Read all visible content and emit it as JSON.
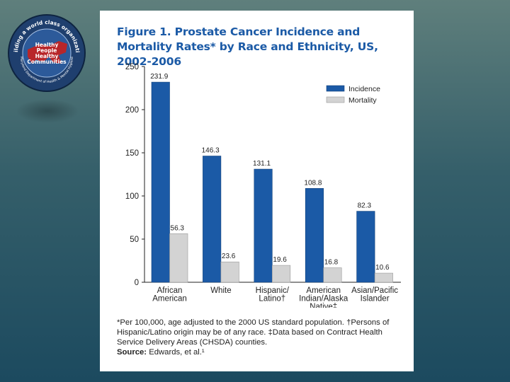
{
  "slide": {
    "logo": {
      "ring_text": "Building a world class organization",
      "center_lines": [
        "Healthy",
        "People",
        "Healthy",
        "Communities"
      ],
      "bottom_text": "Maryland Department of Health & Mental Hygiene",
      "colors": {
        "ring": "#1f3f6e",
        "inner": "#2c5a9a",
        "map": "#c8201e",
        "text": "#ffffff"
      }
    },
    "source_label": "Source:",
    "source_text": " Edwards, et al.¹",
    "footnote": "*Per 100,000, age adjusted to the 2000 US standard population. †Persons of Hispanic/Latino origin may be of any race. ‡Data based on Contract Health Service Delivery Areas (CHSDA) counties."
  },
  "chart_data": {
    "type": "bar",
    "title": "Figure 1. Prostate Cancer Incidence and Mortality Rates* by Race and Ethnicity, US, 2002-2006",
    "categories": [
      [
        "African",
        "American"
      ],
      [
        "White"
      ],
      [
        "Hispanic/",
        "Latino†"
      ],
      [
        "American",
        "Indian/Alaska",
        "Native‡"
      ],
      [
        "Asian/Pacific",
        "Islander"
      ]
    ],
    "series": [
      {
        "name": "Incidence",
        "color": "#1b5aa6",
        "values": [
          231.9,
          146.3,
          131.1,
          108.8,
          82.3
        ],
        "labels": [
          "231.9",
          "146.3",
          "131.1",
          "108.8",
          "82.3"
        ]
      },
      {
        "name": "Mortality",
        "color": "#d3d3d3",
        "values": [
          56.3,
          23.6,
          19.6,
          16.8,
          10.6
        ],
        "labels": [
          "56.3",
          "23.6",
          "19.6",
          "16.8",
          "10.6"
        ]
      }
    ],
    "ylim": [
      0,
      250
    ],
    "yticks": [
      0,
      50,
      100,
      150,
      200,
      250
    ],
    "legend": "top-right",
    "grid": false
  }
}
